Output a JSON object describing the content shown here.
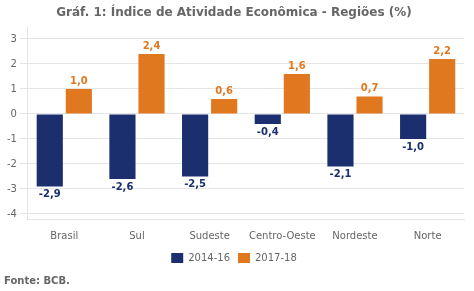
{
  "chart_data": {
    "type": "bar",
    "title": "Gráf. 1: Índice de Atividade Econômica - Regiões (%)",
    "annotations": [
      "Fonte: BCB."
    ],
    "categories": [
      "Brasil",
      "Sul",
      "Sudeste",
      "Centro-Oeste",
      "Nordeste",
      "Norte"
    ],
    "series": [
      {
        "name": "2014-16",
        "color": "#1b2f6e",
        "values": [
          -2.9,
          -2.6,
          -2.5,
          -0.4,
          -2.1,
          -1.0
        ],
        "value_labels": [
          "-2,9",
          "-2,6",
          "-2,5",
          "-0,4",
          "-2,1",
          "-1,0"
        ]
      },
      {
        "name": "2017-18",
        "color": "#e07820",
        "values": [
          1.0,
          2.4,
          0.6,
          1.6,
          0.7,
          2.2
        ],
        "value_labels": [
          "1,0",
          "2,4",
          "0,6",
          "1,6",
          "0,7",
          "2,2"
        ]
      }
    ],
    "ylim": [
      -4.2,
      3.5
    ],
    "yticks": [
      -4,
      -3,
      -2,
      -1,
      0,
      1,
      2,
      3
    ],
    "grid": true,
    "legend": "bottom",
    "data_labels": true
  }
}
